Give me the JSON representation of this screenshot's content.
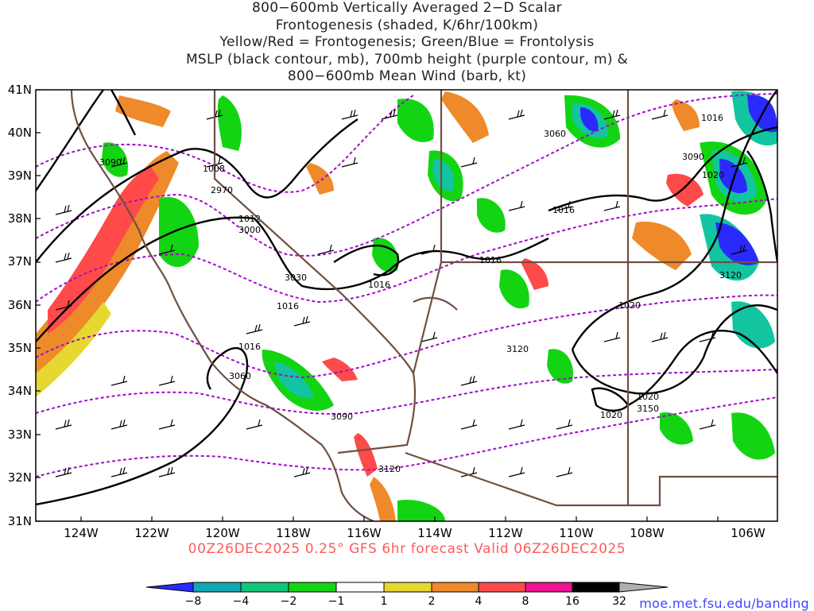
{
  "title_lines": [
    "800−600mb Vertically Averaged 2−D Scalar",
    "Frontogenesis (shaded, K/6hr/100km)",
    "Yellow/Red = Frontogenesis;  Green/Blue = Frontolysis",
    "MSLP (black contour, mb), 700mb height (purple contour, m) &",
    "800−600mb Mean Wind (barb, kt)"
  ],
  "valid_time": "00Z26DEC2025 0.25° GFS 6hr forecast Valid 06Z26DEC2025",
  "credit": "moe.met.fsu.edu/banding",
  "axes": {
    "lat_labels": [
      "41N",
      "40N",
      "39N",
      "38N",
      "37N",
      "36N",
      "35N",
      "34N",
      "33N",
      "32N",
      "31N"
    ],
    "lon_labels": [
      "124W",
      "122W",
      "120W",
      "118W",
      "116W",
      "114W",
      "112W",
      "110W",
      "108W",
      "106W"
    ]
  },
  "colorbar": {
    "labels": [
      "−8",
      "−4",
      "−2",
      "−1",
      "1",
      "2",
      "4",
      "8",
      "16",
      "32"
    ],
    "colors": [
      "#2a2aff",
      "#13a8b4",
      "#13c47a",
      "#13d413",
      "#ffffff",
      "#e6d830",
      "#ee8a2a",
      "#ff4a4a",
      "#ee1490",
      "#000000",
      "#b0b0b0"
    ]
  },
  "mslp_labels": [
    "2970",
    "1008",
    "1012",
    "3000",
    "1016",
    "3030",
    "1016",
    "1016",
    "3060",
    "1016",
    "3090",
    "3120",
    "1016",
    "3060",
    "3090",
    "1020",
    "1016",
    "1020",
    "1020",
    "3150",
    "1020",
    "3120",
    "3090",
    "3120"
  ],
  "colors": {
    "mslp": "#000000",
    "height": "#a010c8",
    "borders": "#705040",
    "frontolysis_green": "#13d413",
    "frontolysis_teal": "#13c4a0",
    "frontolysis_blue": "#2a2aff",
    "frontogenesis_yellow": "#e6d830",
    "frontogenesis_orange": "#ee8a2a",
    "frontogenesis_red": "#ff4a4a"
  }
}
